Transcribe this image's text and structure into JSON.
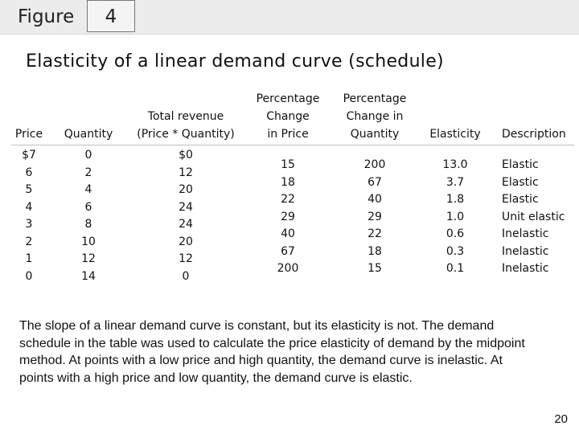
{
  "figure": {
    "label": "Figure",
    "number": "4"
  },
  "title": "Elasticity of a linear demand curve (schedule)",
  "table": {
    "headers": {
      "price": "Price",
      "quantity": "Quantity",
      "revenue": "Total revenue\n(Price * Quantity)",
      "pct_price": "Percentage\nChange\nin Price",
      "pct_quantity": "Percentage\nChange in\nQuantity",
      "elasticity": "Elasticity",
      "description": "Description"
    },
    "price": [
      "$7",
      "6",
      "5",
      "4",
      "3",
      "2",
      "1",
      "0"
    ],
    "quantity": [
      "0",
      "2",
      "4",
      "6",
      "8",
      "10",
      "12",
      "14"
    ],
    "revenue": [
      "$0",
      "12",
      "20",
      "24",
      "24",
      "20",
      "12",
      "0"
    ],
    "pct_price": [
      "15",
      "18",
      "22",
      "29",
      "40",
      "67",
      "200"
    ],
    "pct_quantity": [
      "200",
      "67",
      "40",
      "29",
      "22",
      "18",
      "15"
    ],
    "elasticity": [
      "13.0",
      "3.7",
      "1.8",
      "1.0",
      "0.6",
      "0.3",
      "0.1"
    ],
    "description": [
      "Elastic",
      "Elastic",
      "Elastic",
      "Unit elastic",
      "Inelastic",
      "Inelastic",
      "Inelastic"
    ]
  },
  "caption": "The slope of a linear demand curve is constant, but its elasticity is not. The demand schedule in the table was used to calculate the price elasticity of demand by the midpoint method. At points with a low price and high quantity, the demand curve is inelastic. At points with a high price and low quantity, the demand curve is elastic.",
  "page_number": "20"
}
